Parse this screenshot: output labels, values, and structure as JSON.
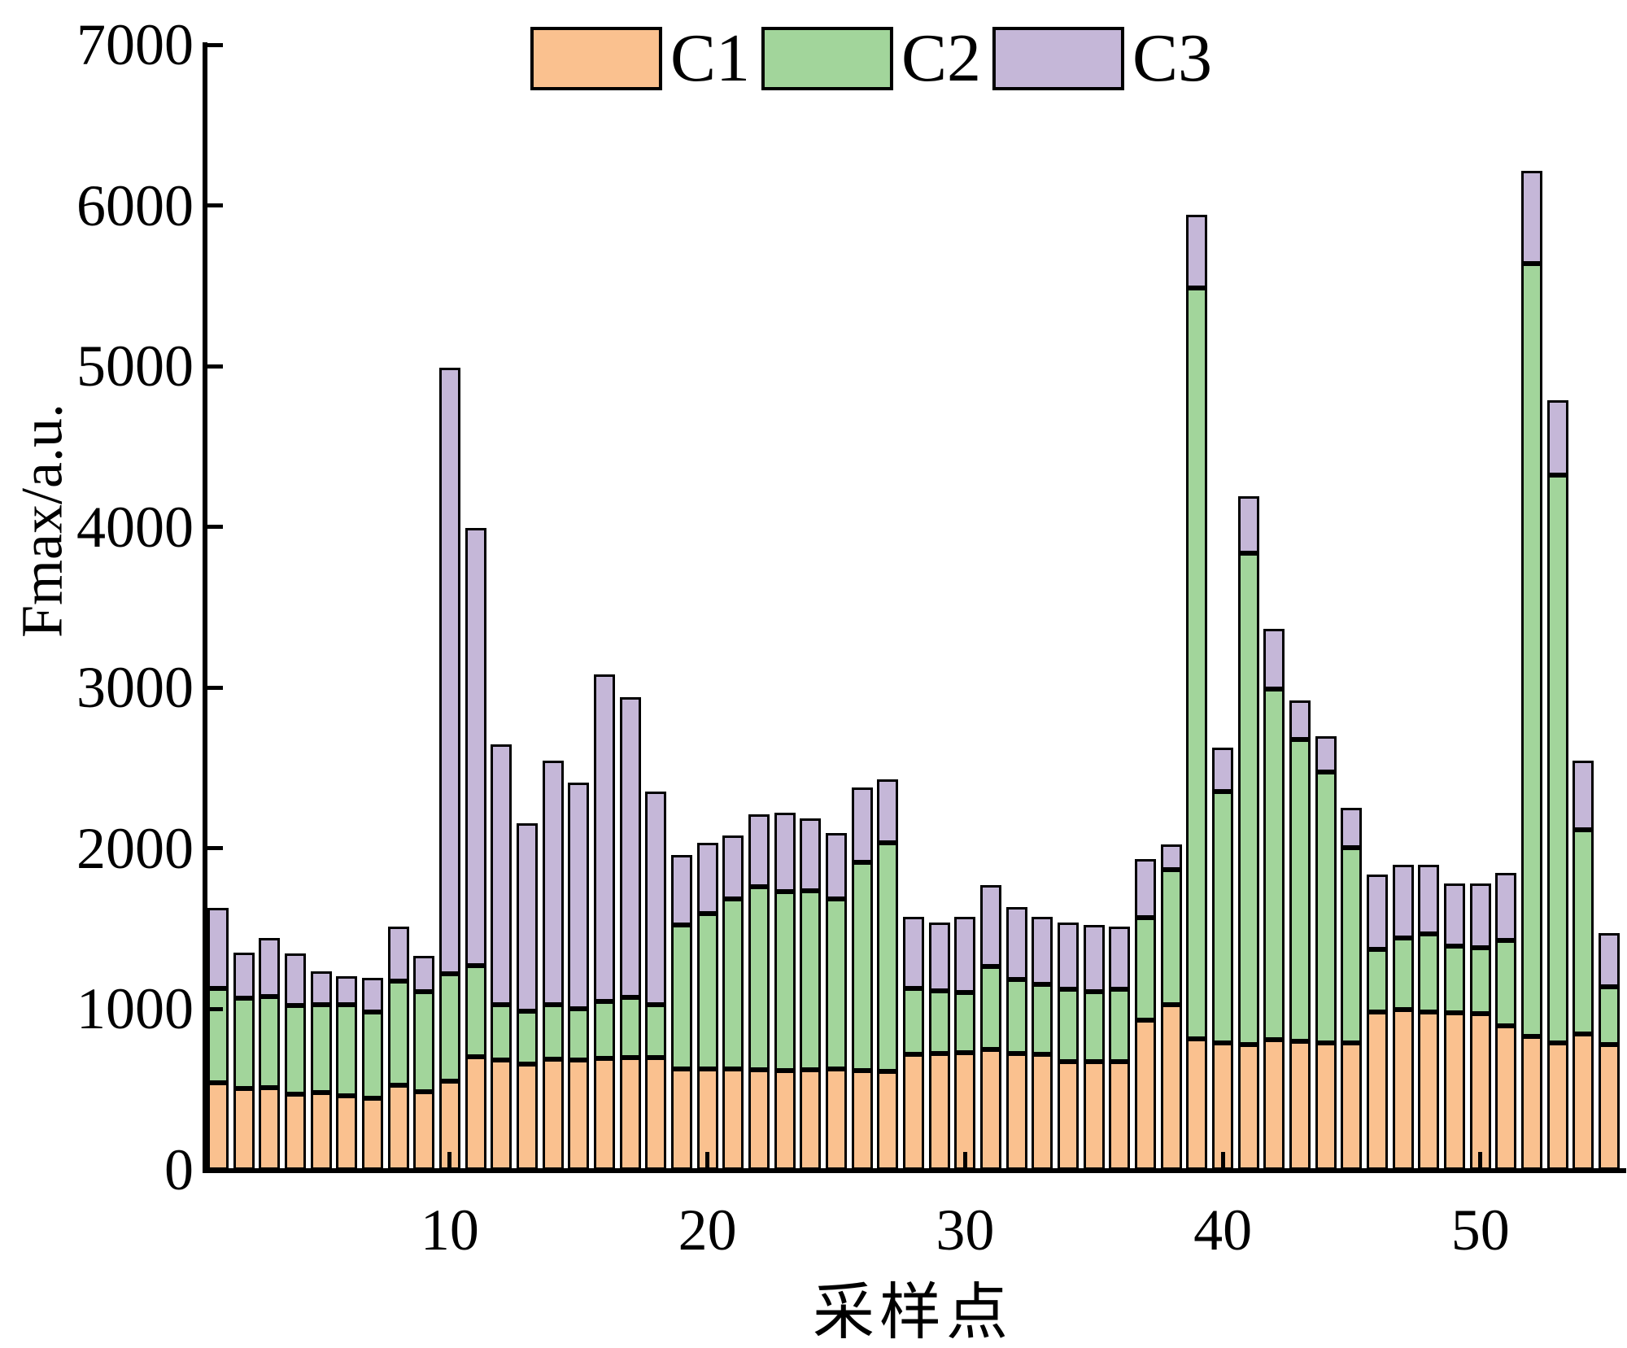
{
  "figure": {
    "background": "#ffffff",
    "edge_color": "#000000"
  },
  "legend": {
    "position": "top-center",
    "entries": [
      {
        "label": "C1",
        "color": "#FAC18F"
      },
      {
        "label": "C2",
        "color": "#A2D59B"
      },
      {
        "label": "C3",
        "color": "#C5B7D8"
      }
    ]
  },
  "chart_data": {
    "type": "bar",
    "stacked": true,
    "title": "",
    "xlabel": "采样点",
    "ylabel": "Fmax/a.u.",
    "ylim": [
      0,
      7000
    ],
    "yticks": [
      0,
      1000,
      2000,
      3000,
      4000,
      5000,
      6000,
      7000
    ],
    "xticks": [
      10,
      20,
      30,
      40,
      50
    ],
    "grid": false,
    "legend_position": "top-center",
    "bar_edge_color": "#000000",
    "categories": [
      1,
      2,
      3,
      4,
      5,
      6,
      7,
      8,
      9,
      10,
      11,
      12,
      13,
      14,
      15,
      16,
      17,
      18,
      19,
      20,
      21,
      22,
      23,
      24,
      25,
      26,
      27,
      28,
      29,
      30,
      31,
      32,
      33,
      34,
      35,
      36,
      37,
      38,
      39,
      40,
      41,
      42,
      43,
      44,
      45,
      46,
      47,
      48,
      49,
      50,
      51,
      52,
      53,
      54,
      55
    ],
    "series": [
      {
        "name": "C1",
        "color": "#FAC18F",
        "values": [
          540,
          505,
          510,
          470,
          480,
          460,
          445,
          525,
          485,
          550,
          705,
          685,
          660,
          690,
          685,
          695,
          700,
          700,
          630,
          630,
          630,
          625,
          615,
          625,
          630,
          615,
          610,
          720,
          725,
          730,
          750,
          725,
          720,
          675,
          675,
          675,
          930,
          1030,
          815,
          790,
          780,
          810,
          800,
          790,
          790,
          980,
          995,
          980,
          975,
          970,
          895,
          830,
          790,
          845,
          780
        ]
      },
      {
        "name": "C2",
        "color": "#A2D59B",
        "values": [
          590,
          565,
          570,
          550,
          545,
          565,
          535,
          650,
          625,
          670,
          565,
          345,
          325,
          340,
          315,
          355,
          375,
          325,
          895,
          965,
          1055,
          1135,
          1115,
          1110,
          1055,
          1300,
          1425,
          410,
          390,
          375,
          515,
          460,
          435,
          450,
          435,
          450,
          640,
          840,
          4670,
          1565,
          3055,
          2180,
          1875,
          1685,
          1215,
          390,
          445,
          490,
          415,
          410,
          530,
          4810,
          3530,
          1270,
          360
        ]
      },
      {
        "name": "C3",
        "color": "#C5B7D8",
        "values": [
          500,
          280,
          360,
          325,
          210,
          180,
          215,
          340,
          220,
          3770,
          2725,
          1615,
          1170,
          1515,
          1410,
          2030,
          1865,
          1330,
          435,
          440,
          395,
          450,
          490,
          450,
          410,
          465,
          395,
          445,
          425,
          470,
          505,
          450,
          420,
          415,
          415,
          390,
          365,
          155,
          455,
          270,
          355,
          375,
          245,
          225,
          245,
          465,
          460,
          430,
          390,
          400,
          420,
          575,
          470,
          430,
          335
        ]
      }
    ]
  }
}
